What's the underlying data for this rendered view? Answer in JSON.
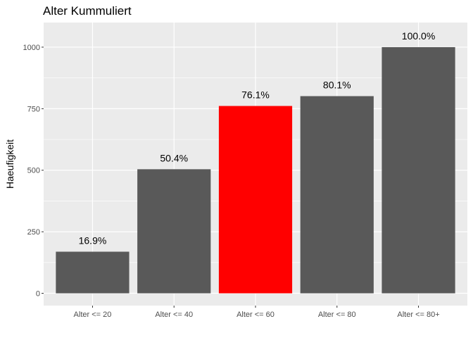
{
  "chart_data": {
    "type": "bar",
    "title": "Alter Kummuliert",
    "xlabel": "",
    "ylabel": "Haeufigkeit",
    "categories": [
      "Alter <= 20",
      "Alter <= 40",
      "Alter <= 60",
      "Alter <= 80",
      "Alter <= 80+"
    ],
    "values": [
      169,
      504,
      761,
      801,
      1000
    ],
    "data_labels": [
      "16.9%",
      "50.4%",
      "76.1%",
      "80.1%",
      "100.0%"
    ],
    "bar_colors": [
      "#595959",
      "#595959",
      "#ff0000",
      "#595959",
      "#595959"
    ],
    "highlight_index": 2,
    "ylim": [
      -50,
      1100
    ],
    "yticks": [
      0,
      250,
      500,
      750,
      1000
    ],
    "grid": true,
    "legend": "none",
    "panel_background": "#ebebeb"
  }
}
